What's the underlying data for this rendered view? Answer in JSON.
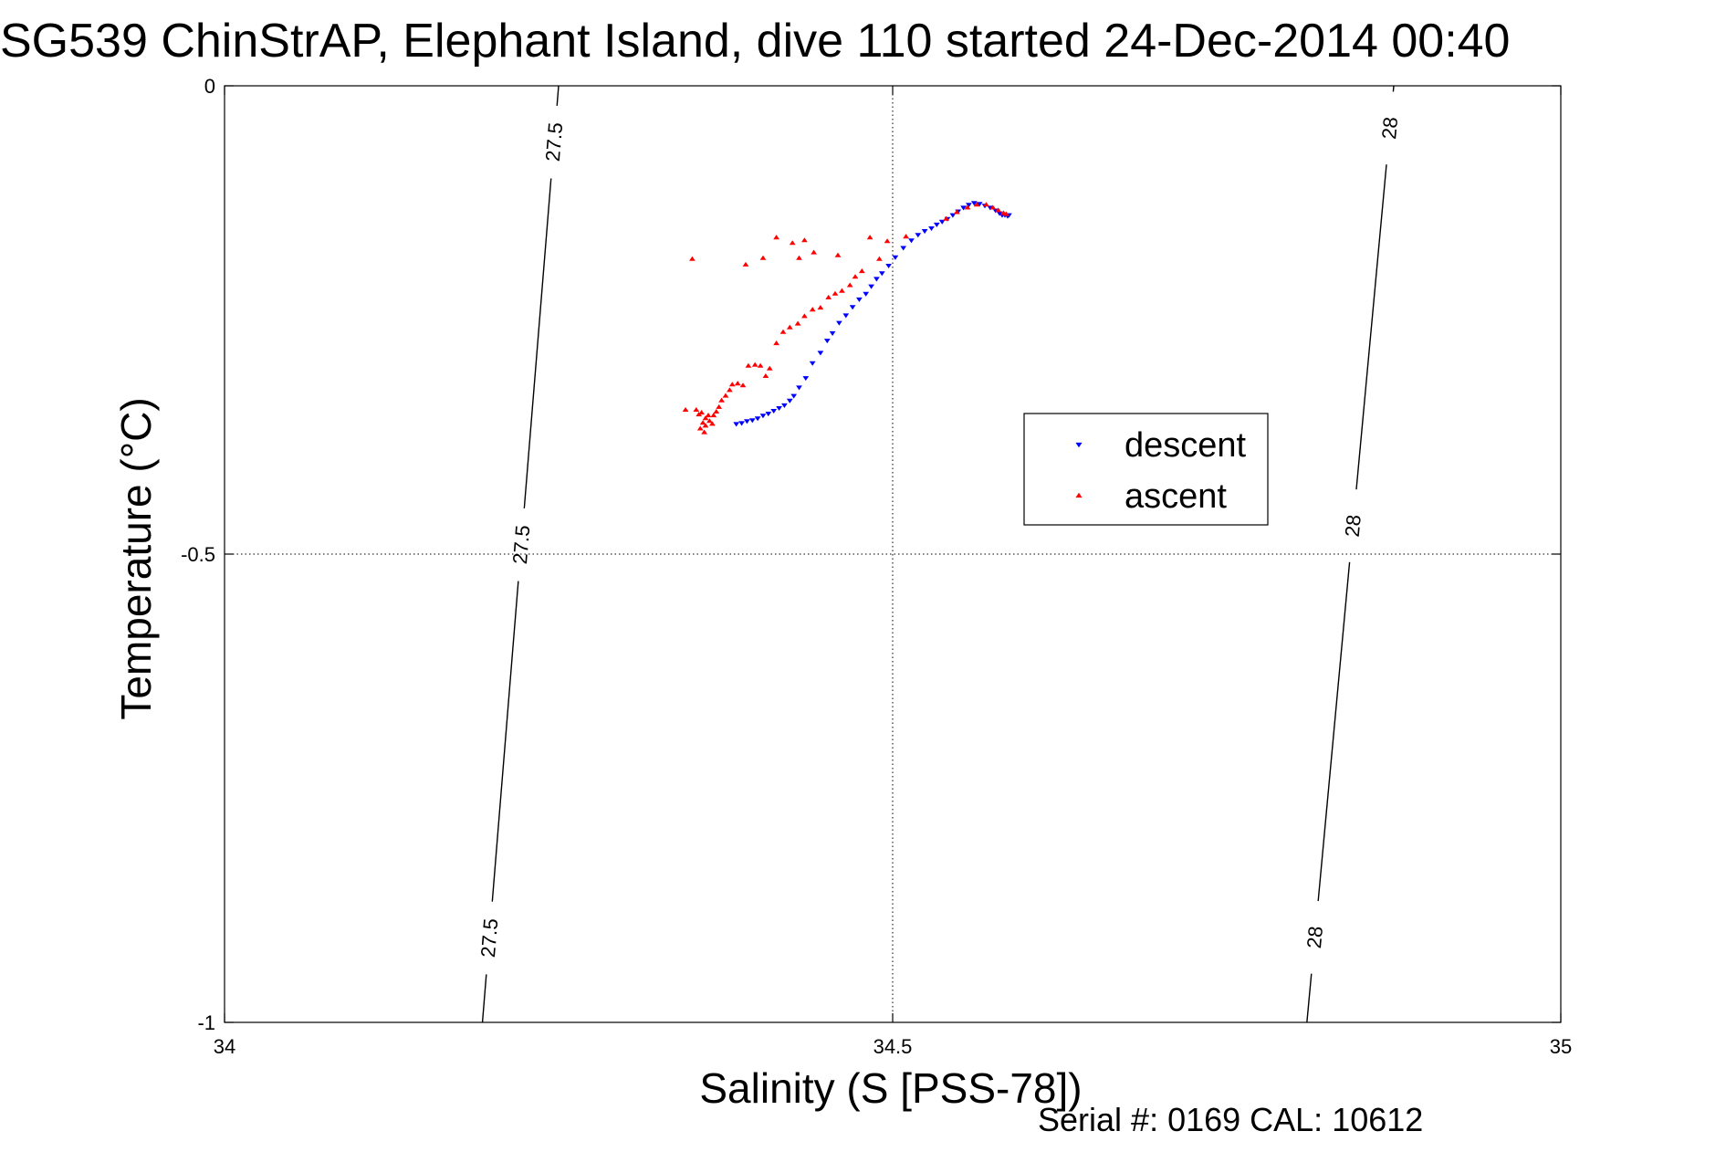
{
  "chart_data": {
    "type": "scatter",
    "title": "SG539 ChinStrAP, Elephant Island, dive 110 started 24-Dec-2014 00:40",
    "xlabel": "Salinity (S [PSS-78])",
    "ylabel": "Temperature (°C)",
    "xlim": [
      34,
      35
    ],
    "ylim": [
      -1,
      0
    ],
    "xticks": [
      34,
      34.5,
      35
    ],
    "xtick_labels": [
      "34",
      "34.5",
      "35"
    ],
    "yticks": [
      0,
      -0.5,
      -1
    ],
    "ytick_labels": [
      "0",
      "-0.5",
      "-1"
    ],
    "grid": true,
    "legend_position": "center-right",
    "footer": "Serial #: 0169 CAL: 10612",
    "isopycnals": [
      {
        "label": "27.5",
        "points": [
          [
            34.25,
            0.0
          ],
          [
            34.193,
            -1.0
          ]
        ],
        "label_positions": [
          [
            34.246,
            -0.06
          ],
          [
            34.222,
            -0.49
          ],
          [
            34.199,
            -0.91
          ]
        ]
      },
      {
        "label": "28",
        "points": [
          [
            34.875,
            0.0
          ],
          [
            34.81,
            -1.0
          ]
        ],
        "label_positions": [
          [
            34.871,
            -0.045
          ],
          [
            34.846,
            -0.47
          ],
          [
            34.822,
            -0.91
          ]
        ]
      }
    ],
    "series": [
      {
        "name": "descent",
        "color": "#0000ff",
        "marker": "triangle-down",
        "points": [
          [
            34.383,
            -0.361
          ],
          [
            34.387,
            -0.36
          ],
          [
            34.391,
            -0.358
          ],
          [
            34.395,
            -0.357
          ],
          [
            34.399,
            -0.355
          ],
          [
            34.403,
            -0.352
          ],
          [
            34.407,
            -0.35
          ],
          [
            34.411,
            -0.347
          ],
          [
            34.415,
            -0.344
          ],
          [
            34.419,
            -0.341
          ],
          [
            34.423,
            -0.336
          ],
          [
            34.426,
            -0.331
          ],
          [
            34.43,
            -0.322
          ],
          [
            34.435,
            -0.312
          ],
          [
            34.44,
            -0.296
          ],
          [
            34.446,
            -0.285
          ],
          [
            34.451,
            -0.272
          ],
          [
            34.455,
            -0.264
          ],
          [
            34.46,
            -0.253
          ],
          [
            34.465,
            -0.245
          ],
          [
            34.47,
            -0.236
          ],
          [
            34.475,
            -0.228
          ],
          [
            34.48,
            -0.222
          ],
          [
            34.484,
            -0.214
          ],
          [
            34.488,
            -0.206
          ],
          [
            34.492,
            -0.2
          ],
          [
            34.497,
            -0.192
          ],
          [
            34.502,
            -0.183
          ],
          [
            34.508,
            -0.173
          ],
          [
            34.514,
            -0.165
          ],
          [
            34.519,
            -0.159
          ],
          [
            34.524,
            -0.155
          ],
          [
            34.529,
            -0.152
          ],
          [
            34.533,
            -0.148
          ],
          [
            34.537,
            -0.145
          ],
          [
            34.541,
            -0.142
          ],
          [
            34.545,
            -0.138
          ],
          [
            34.549,
            -0.134
          ],
          [
            34.553,
            -0.13
          ],
          [
            34.557,
            -0.127
          ],
          [
            34.561,
            -0.125
          ],
          [
            34.565,
            -0.126
          ],
          [
            34.569,
            -0.128
          ],
          [
            34.573,
            -0.13
          ],
          [
            34.577,
            -0.133
          ],
          [
            34.58,
            -0.136
          ],
          [
            34.582,
            -0.138
          ],
          [
            34.584,
            -0.138
          ],
          [
            34.586,
            -0.139
          ],
          [
            34.587,
            -0.138
          ]
        ]
      },
      {
        "name": "ascent",
        "color": "#ff0000",
        "marker": "triangle-up",
        "points": [
          [
            34.353,
            -0.346
          ],
          [
            34.355,
            -0.351
          ],
          [
            34.357,
            -0.349
          ],
          [
            34.36,
            -0.355
          ],
          [
            34.362,
            -0.352
          ],
          [
            34.358,
            -0.36
          ],
          [
            34.36,
            -0.363
          ],
          [
            34.363,
            -0.358
          ],
          [
            34.365,
            -0.361
          ],
          [
            34.356,
            -0.366
          ],
          [
            34.359,
            -0.37
          ],
          [
            34.366,
            -0.352
          ],
          [
            34.368,
            -0.348
          ],
          [
            34.37,
            -0.343
          ],
          [
            34.372,
            -0.336
          ],
          [
            34.375,
            -0.331
          ],
          [
            34.378,
            -0.325
          ],
          [
            34.38,
            -0.319
          ],
          [
            34.384,
            -0.318
          ],
          [
            34.388,
            -0.32
          ],
          [
            34.392,
            -0.299
          ],
          [
            34.397,
            -0.298
          ],
          [
            34.401,
            -0.299
          ],
          [
            34.405,
            -0.31
          ],
          [
            34.408,
            -0.302
          ],
          [
            34.413,
            -0.275
          ],
          [
            34.418,
            -0.263
          ],
          [
            34.423,
            -0.258
          ],
          [
            34.429,
            -0.254
          ],
          [
            34.434,
            -0.246
          ],
          [
            34.44,
            -0.239
          ],
          [
            34.446,
            -0.237
          ],
          [
            34.452,
            -0.226
          ],
          [
            34.457,
            -0.222
          ],
          [
            34.462,
            -0.219
          ],
          [
            34.468,
            -0.213
          ],
          [
            34.472,
            -0.204
          ],
          [
            34.477,
            -0.198
          ],
          [
            34.49,
            -0.185
          ],
          [
            34.54,
            -0.142
          ],
          [
            34.548,
            -0.135
          ],
          [
            34.556,
            -0.13
          ],
          [
            34.563,
            -0.127
          ],
          [
            34.57,
            -0.127
          ],
          [
            34.575,
            -0.13
          ],
          [
            34.579,
            -0.133
          ],
          [
            34.583,
            -0.136
          ],
          [
            34.585,
            -0.137
          ],
          [
            34.345,
            -0.346
          ],
          [
            34.35,
            -0.185
          ],
          [
            34.39,
            -0.191
          ],
          [
            34.403,
            -0.184
          ],
          [
            34.413,
            -0.162
          ],
          [
            34.425,
            -0.168
          ],
          [
            34.43,
            -0.184
          ],
          [
            34.434,
            -0.165
          ],
          [
            34.441,
            -0.178
          ],
          [
            34.459,
            -0.181
          ],
          [
            34.483,
            -0.162
          ],
          [
            34.496,
            -0.166
          ],
          [
            34.51,
            -0.161
          ]
        ]
      }
    ]
  }
}
